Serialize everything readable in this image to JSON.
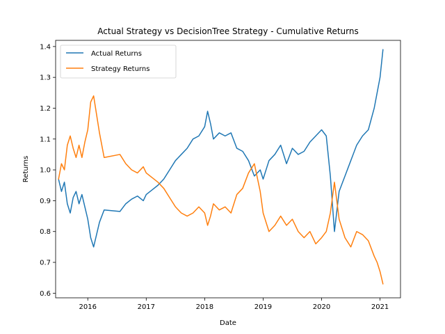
{
  "chart_data": {
    "type": "line",
    "title": "Actual Strategy vs DecisionTree Strategy - Cumulative Returns",
    "xlabel": "Date",
    "ylabel": "Returns",
    "xlim": [
      2015.45,
      2021.35
    ],
    "ylim": [
      0.585,
      1.42
    ],
    "x_ticks": [
      2016,
      2017,
      2018,
      2019,
      2020,
      2021
    ],
    "y_ticks": [
      0.6,
      0.7,
      0.8,
      0.9,
      1.0,
      1.1,
      1.2,
      1.3,
      1.4
    ],
    "grid": false,
    "legend_position": "top-left",
    "series": [
      {
        "name": "Actual Returns",
        "color": "#1f77b4",
        "points": [
          [
            2015.5,
            0.97
          ],
          [
            2015.55,
            0.93
          ],
          [
            2015.6,
            0.96
          ],
          [
            2015.65,
            0.89
          ],
          [
            2015.7,
            0.86
          ],
          [
            2015.75,
            0.91
          ],
          [
            2015.8,
            0.93
          ],
          [
            2015.85,
            0.89
          ],
          [
            2015.9,
            0.92
          ],
          [
            2015.95,
            0.88
          ],
          [
            2016.0,
            0.84
          ],
          [
            2016.05,
            0.78
          ],
          [
            2016.1,
            0.75
          ],
          [
            2016.15,
            0.79
          ],
          [
            2016.2,
            0.83
          ],
          [
            2016.28,
            0.87
          ],
          [
            2016.55,
            0.865
          ],
          [
            2016.65,
            0.89
          ],
          [
            2016.75,
            0.905
          ],
          [
            2016.85,
            0.915
          ],
          [
            2016.95,
            0.9
          ],
          [
            2017.0,
            0.92
          ],
          [
            2017.1,
            0.935
          ],
          [
            2017.2,
            0.95
          ],
          [
            2017.3,
            0.97
          ],
          [
            2017.4,
            1.0
          ],
          [
            2017.5,
            1.03
          ],
          [
            2017.6,
            1.05
          ],
          [
            2017.7,
            1.07
          ],
          [
            2017.8,
            1.1
          ],
          [
            2017.9,
            1.11
          ],
          [
            2018.0,
            1.14
          ],
          [
            2018.05,
            1.19
          ],
          [
            2018.1,
            1.15
          ],
          [
            2018.15,
            1.1
          ],
          [
            2018.25,
            1.12
          ],
          [
            2018.35,
            1.11
          ],
          [
            2018.45,
            1.12
          ],
          [
            2018.55,
            1.07
          ],
          [
            2018.65,
            1.06
          ],
          [
            2018.75,
            1.03
          ],
          [
            2018.85,
            0.98
          ],
          [
            2018.95,
            1.0
          ],
          [
            2019.0,
            0.97
          ],
          [
            2019.1,
            1.03
          ],
          [
            2019.2,
            1.05
          ],
          [
            2019.3,
            1.08
          ],
          [
            2019.4,
            1.02
          ],
          [
            2019.5,
            1.07
          ],
          [
            2019.6,
            1.05
          ],
          [
            2019.7,
            1.06
          ],
          [
            2019.8,
            1.09
          ],
          [
            2019.9,
            1.11
          ],
          [
            2020.0,
            1.13
          ],
          [
            2020.08,
            1.11
          ],
          [
            2020.15,
            0.98
          ],
          [
            2020.22,
            0.8
          ],
          [
            2020.3,
            0.93
          ],
          [
            2020.4,
            0.98
          ],
          [
            2020.5,
            1.03
          ],
          [
            2020.6,
            1.08
          ],
          [
            2020.7,
            1.11
          ],
          [
            2020.8,
            1.13
          ],
          [
            2020.9,
            1.2
          ],
          [
            2020.95,
            1.25
          ],
          [
            2021.0,
            1.3
          ],
          [
            2021.05,
            1.39
          ]
        ]
      },
      {
        "name": "Strategy Returns",
        "color": "#ff7f0e",
        "points": [
          [
            2015.5,
            0.97
          ],
          [
            2015.55,
            1.02
          ],
          [
            2015.6,
            1.0
          ],
          [
            2015.65,
            1.08
          ],
          [
            2015.7,
            1.11
          ],
          [
            2015.75,
            1.07
          ],
          [
            2015.8,
            1.04
          ],
          [
            2015.85,
            1.08
          ],
          [
            2015.9,
            1.04
          ],
          [
            2015.95,
            1.09
          ],
          [
            2016.0,
            1.13
          ],
          [
            2016.05,
            1.22
          ],
          [
            2016.1,
            1.24
          ],
          [
            2016.15,
            1.18
          ],
          [
            2016.2,
            1.12
          ],
          [
            2016.28,
            1.04
          ],
          [
            2016.55,
            1.05
          ],
          [
            2016.65,
            1.02
          ],
          [
            2016.75,
            1.0
          ],
          [
            2016.85,
            0.99
          ],
          [
            2016.95,
            1.01
          ],
          [
            2017.0,
            0.99
          ],
          [
            2017.1,
            0.975
          ],
          [
            2017.2,
            0.96
          ],
          [
            2017.3,
            0.94
          ],
          [
            2017.4,
            0.91
          ],
          [
            2017.5,
            0.88
          ],
          [
            2017.6,
            0.86
          ],
          [
            2017.7,
            0.85
          ],
          [
            2017.8,
            0.86
          ],
          [
            2017.9,
            0.88
          ],
          [
            2018.0,
            0.86
          ],
          [
            2018.05,
            0.82
          ],
          [
            2018.1,
            0.85
          ],
          [
            2018.15,
            0.89
          ],
          [
            2018.25,
            0.87
          ],
          [
            2018.35,
            0.88
          ],
          [
            2018.45,
            0.86
          ],
          [
            2018.55,
            0.92
          ],
          [
            2018.65,
            0.94
          ],
          [
            2018.75,
            0.99
          ],
          [
            2018.85,
            1.02
          ],
          [
            2018.95,
            0.93
          ],
          [
            2019.0,
            0.86
          ],
          [
            2019.1,
            0.8
          ],
          [
            2019.2,
            0.82
          ],
          [
            2019.3,
            0.85
          ],
          [
            2019.4,
            0.82
          ],
          [
            2019.5,
            0.84
          ],
          [
            2019.6,
            0.8
          ],
          [
            2019.7,
            0.78
          ],
          [
            2019.8,
            0.8
          ],
          [
            2019.9,
            0.76
          ],
          [
            2020.0,
            0.78
          ],
          [
            2020.08,
            0.8
          ],
          [
            2020.15,
            0.86
          ],
          [
            2020.22,
            0.96
          ],
          [
            2020.3,
            0.84
          ],
          [
            2020.4,
            0.78
          ],
          [
            2020.5,
            0.75
          ],
          [
            2020.6,
            0.8
          ],
          [
            2020.7,
            0.79
          ],
          [
            2020.8,
            0.77
          ],
          [
            2020.9,
            0.72
          ],
          [
            2020.95,
            0.7
          ],
          [
            2021.0,
            0.67
          ],
          [
            2021.05,
            0.63
          ]
        ]
      }
    ]
  }
}
